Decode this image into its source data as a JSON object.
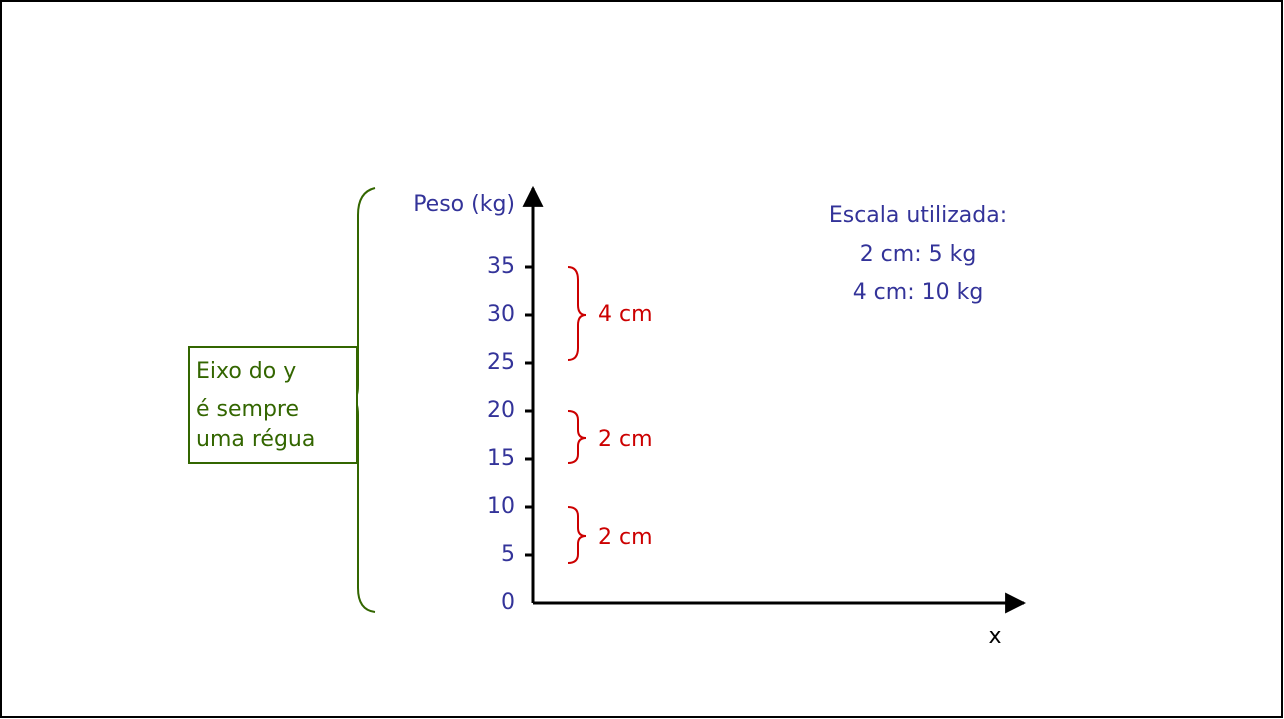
{
  "axis": {
    "y_label": "Peso (kg)",
    "x_label": "x",
    "ticks": [
      0,
      5,
      10,
      15,
      20,
      25,
      30,
      35
    ]
  },
  "braces": [
    {
      "label": "4 cm"
    },
    {
      "label": "2 cm"
    },
    {
      "label": "2 cm"
    }
  ],
  "scale": {
    "title": "Escala utilizada:",
    "lines": [
      "2 cm: 5 kg",
      "4 cm: 10 kg"
    ]
  },
  "note": {
    "lines": [
      "Eixo do y",
      "é sempre",
      "uma régua"
    ]
  }
}
